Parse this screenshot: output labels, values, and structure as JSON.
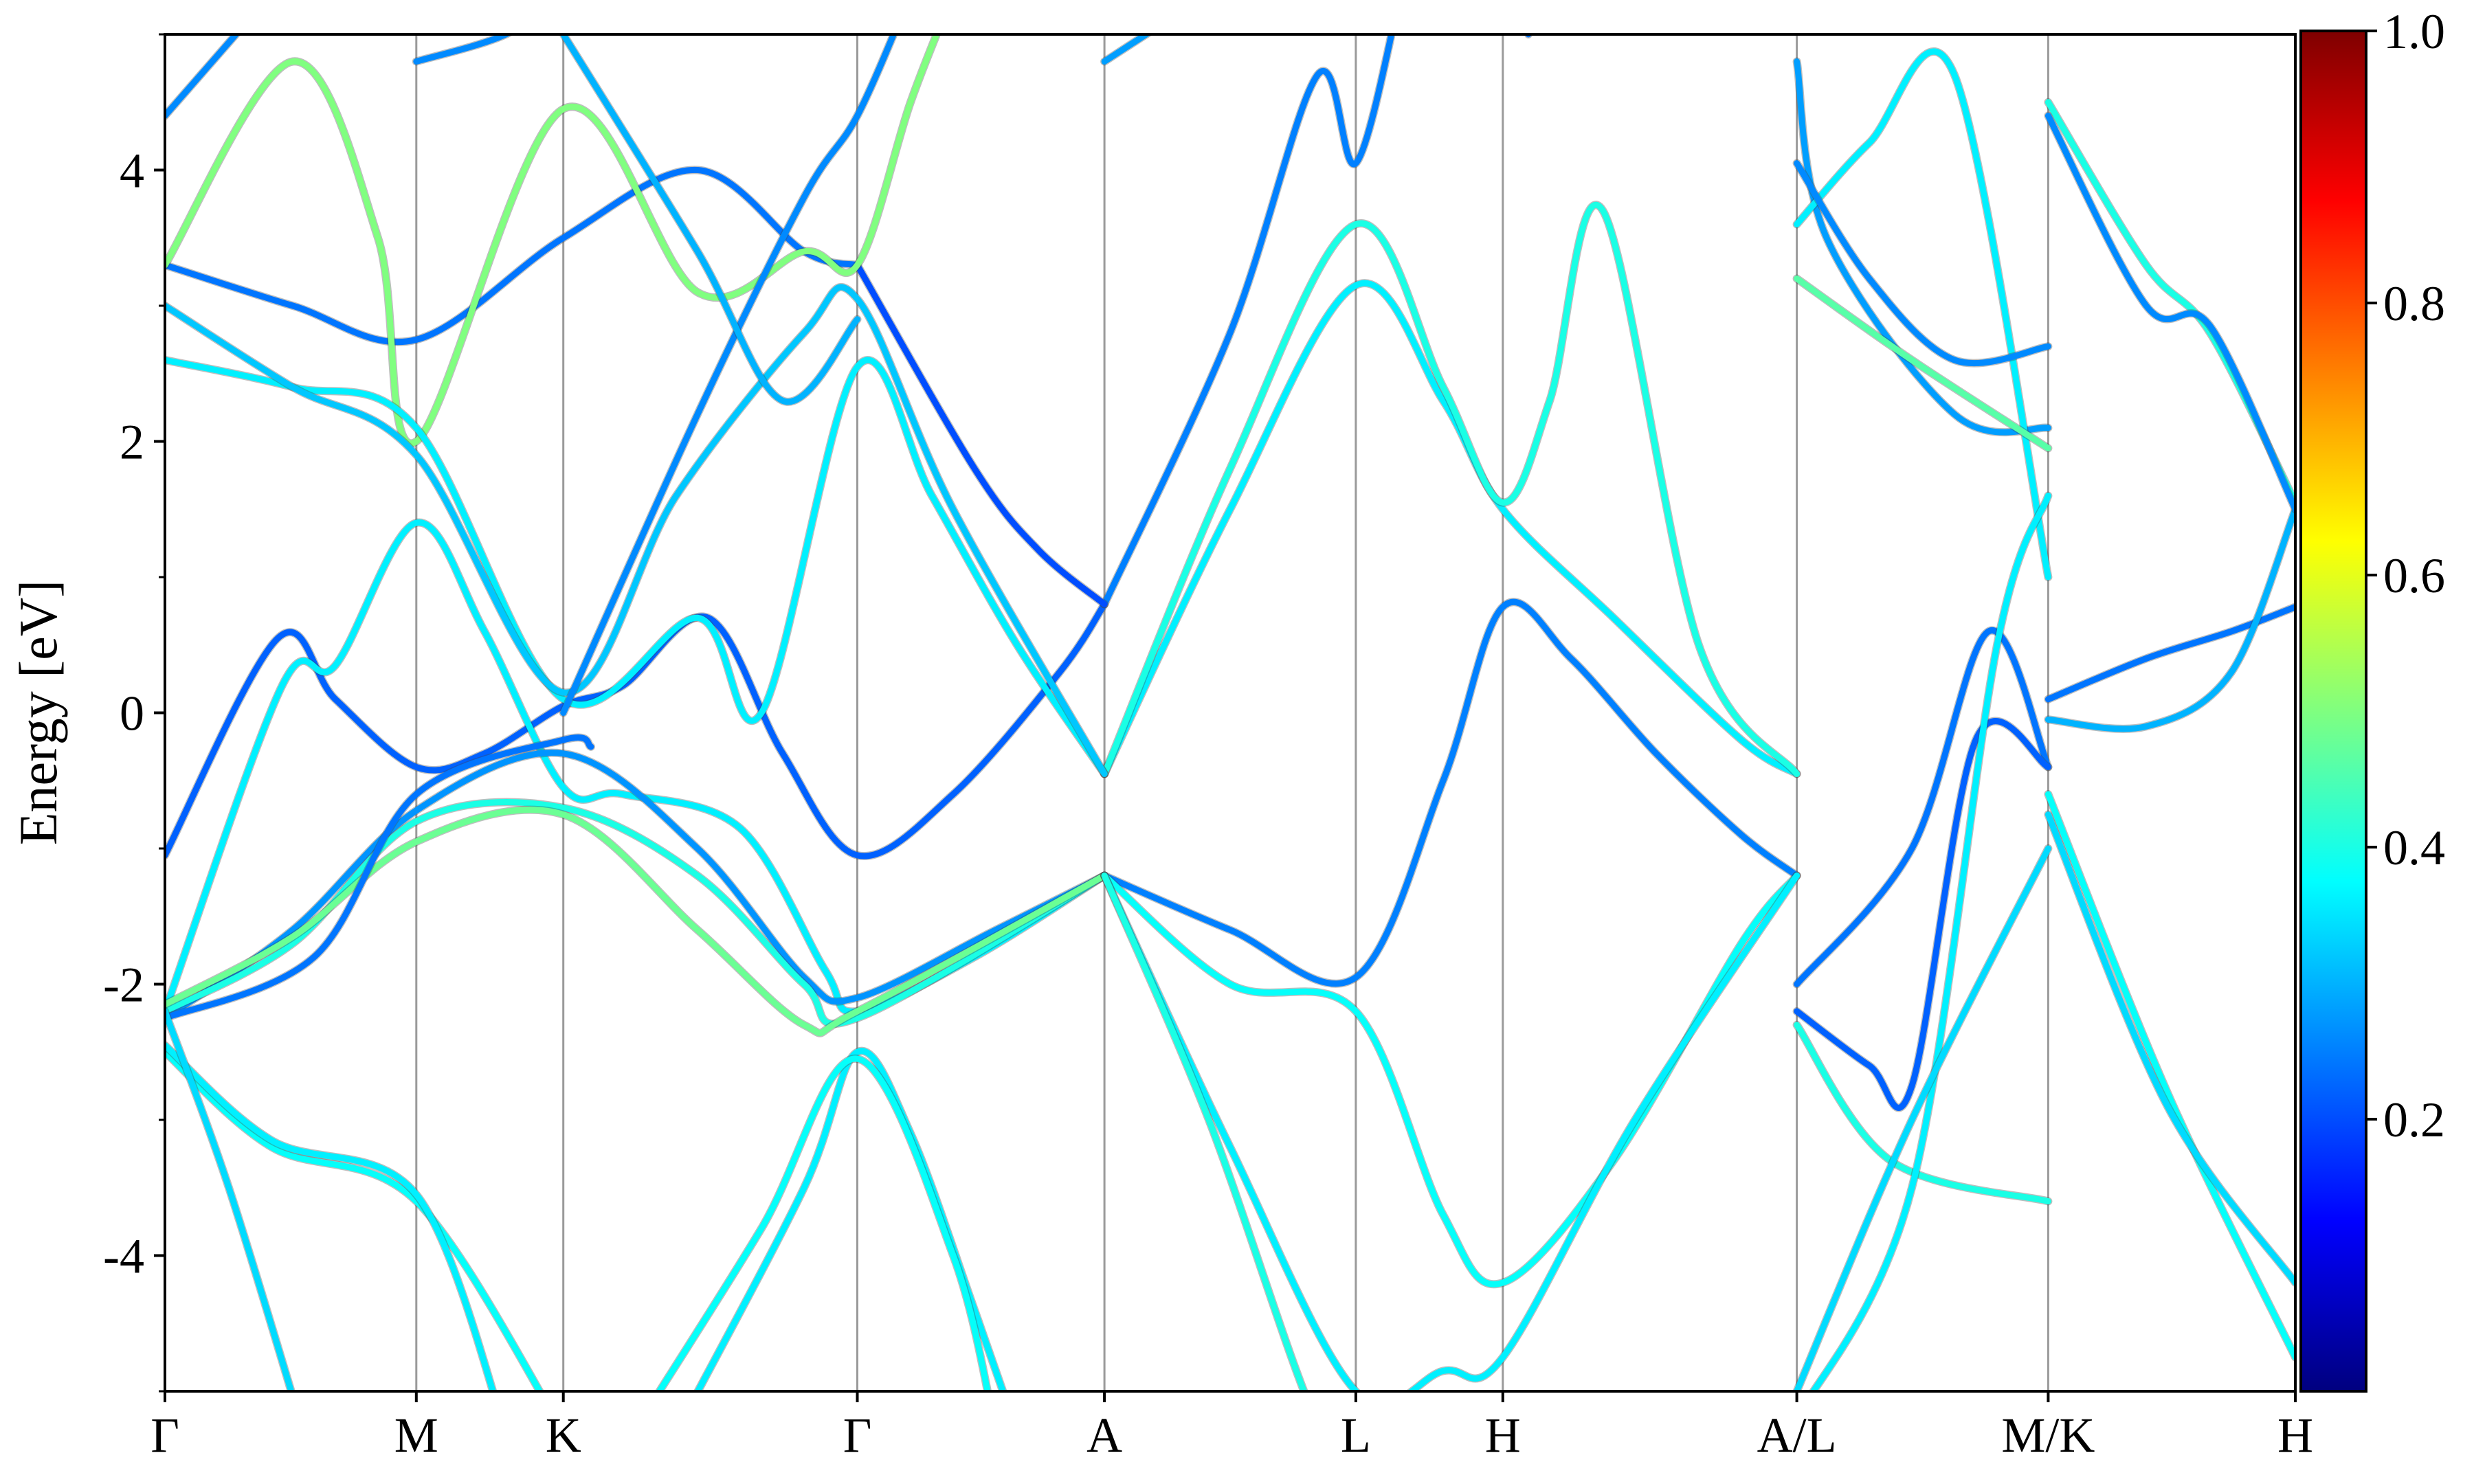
{
  "chart_data": {
    "type": "line",
    "ylabel": "Energy [eV]",
    "ylim": [
      -5,
      5
    ],
    "yticks": [
      {
        "value": 4,
        "label": "4"
      },
      {
        "value": 2,
        "label": "2"
      },
      {
        "value": 0,
        "label": "0"
      },
      {
        "value": -2,
        "label": "-2"
      },
      {
        "value": -4,
        "label": "-4"
      }
    ],
    "xlim": [
      0,
      1
    ],
    "kpoints": [
      {
        "x": 0.0,
        "label": "Γ"
      },
      {
        "x": 0.118,
        "label": "M"
      },
      {
        "x": 0.187,
        "label": "K"
      },
      {
        "x": 0.325,
        "label": "Γ"
      },
      {
        "x": 0.441,
        "label": "A"
      },
      {
        "x": 0.559,
        "label": "L"
      },
      {
        "x": 0.628,
        "label": "H"
      },
      {
        "x": 0.766,
        "label": "A/L"
      },
      {
        "x": 0.884,
        "label": "M/K"
      },
      {
        "x": 1.0,
        "label": "H"
      }
    ],
    "colorbar": {
      "range": [
        0,
        1
      ],
      "colormap": "jet",
      "ticks": [
        {
          "value": 0.2,
          "label": "0.2"
        },
        {
          "value": 0.4,
          "label": "0.4"
        },
        {
          "value": 0.6,
          "label": "0.6"
        },
        {
          "value": 0.8,
          "label": "0.8"
        },
        {
          "value": 1.0,
          "label": "1.0"
        }
      ]
    },
    "bands": [
      {
        "w": 0.22,
        "points": [
          [
            0.0,
            -1.05
          ],
          [
            0.053,
            0.55
          ],
          [
            0.08,
            0.1
          ],
          [
            0.118,
            -0.4
          ],
          [
            0.15,
            -0.3
          ],
          [
            0.187,
            0.05
          ],
          [
            0.215,
            0.2
          ],
          [
            0.255,
            0.7
          ],
          [
            0.29,
            -0.3
          ],
          [
            0.325,
            -1.05
          ],
          [
            0.37,
            -0.6
          ],
          [
            0.42,
            0.3
          ],
          [
            0.441,
            0.8
          ]
        ]
      },
      {
        "w": 0.36,
        "points": [
          [
            0.0,
            -2.2
          ],
          [
            0.055,
            0.2
          ],
          [
            0.08,
            0.35
          ],
          [
            0.118,
            1.4
          ],
          [
            0.15,
            0.6
          ],
          [
            0.187,
            -0.55
          ],
          [
            0.215,
            -0.6
          ],
          [
            0.27,
            -0.85
          ],
          [
            0.31,
            -1.9
          ],
          [
            0.325,
            -2.2
          ],
          [
            0.38,
            -1.8
          ],
          [
            0.441,
            -1.2
          ]
        ]
      },
      {
        "w": 0.27,
        "points": [
          [
            0.0,
            -2.25
          ],
          [
            0.06,
            -1.6
          ],
          [
            0.118,
            -0.72
          ],
          [
            0.187,
            -0.3
          ],
          [
            0.25,
            -1.0
          ],
          [
            0.3,
            -1.95
          ],
          [
            0.325,
            -2.1
          ],
          [
            0.39,
            -1.6
          ],
          [
            0.441,
            -1.2
          ]
        ]
      },
      {
        "w": 0.4,
        "points": [
          [
            0.0,
            -2.2
          ],
          [
            0.06,
            -1.7
          ],
          [
            0.118,
            -0.8
          ],
          [
            0.187,
            -0.7
          ],
          [
            0.25,
            -1.2
          ],
          [
            0.3,
            -2.0
          ],
          [
            0.325,
            -2.25
          ],
          [
            0.441,
            -1.2
          ]
        ]
      },
      {
        "w": 0.48,
        "points": [
          [
            0.0,
            -2.15
          ],
          [
            0.06,
            -1.65
          ],
          [
            0.118,
            -0.95
          ],
          [
            0.187,
            -0.75
          ],
          [
            0.25,
            -1.6
          ],
          [
            0.3,
            -2.3
          ],
          [
            0.325,
            -2.2
          ],
          [
            0.441,
            -1.2
          ]
        ]
      },
      {
        "w": 0.24,
        "points": [
          [
            0.0,
            -2.25
          ],
          [
            0.07,
            -1.8
          ],
          [
            0.118,
            -0.6
          ],
          [
            0.187,
            -0.2
          ],
          [
            0.2,
            -0.25
          ]
        ]
      },
      {
        "w": 0.38,
        "points": [
          [
            0.0,
            -2.5
          ],
          [
            0.05,
            -3.2
          ],
          [
            0.118,
            -3.6
          ],
          [
            0.187,
            -5.3
          ]
        ]
      },
      {
        "w": 0.36,
        "points": [
          [
            0.0,
            -2.45
          ],
          [
            0.05,
            -3.15
          ],
          [
            0.118,
            -3.55
          ],
          [
            0.16,
            -5.3
          ]
        ]
      },
      {
        "w": 0.34,
        "points": [
          [
            0.0,
            -2.2
          ],
          [
            0.03,
            -3.5
          ],
          [
            0.065,
            -5.3
          ]
        ]
      },
      {
        "w": 0.36,
        "points": [
          [
            0.24,
            -5.3
          ],
          [
            0.3,
            -3.5
          ],
          [
            0.325,
            -2.5
          ],
          [
            0.35,
            -3.1
          ],
          [
            0.38,
            -4.4
          ],
          [
            0.4,
            -5.3
          ]
        ]
      },
      {
        "w": 0.38,
        "points": [
          [
            0.22,
            -5.3
          ],
          [
            0.28,
            -3.8
          ],
          [
            0.325,
            -2.55
          ],
          [
            0.37,
            -4.0
          ],
          [
            0.39,
            -5.3
          ]
        ]
      },
      {
        "w": 0.25,
        "points": [
          [
            0.441,
            -1.2
          ],
          [
            0.5,
            -1.6
          ],
          [
            0.559,
            -1.95
          ],
          [
            0.6,
            -0.5
          ],
          [
            0.628,
            0.78
          ],
          [
            0.66,
            0.4
          ],
          [
            0.7,
            -0.3
          ],
          [
            0.74,
            -0.9
          ],
          [
            0.766,
            -1.2
          ]
        ]
      },
      {
        "w": 0.38,
        "points": [
          [
            0.441,
            -1.2
          ],
          [
            0.5,
            -2.0
          ],
          [
            0.559,
            -2.2
          ],
          [
            0.6,
            -3.7
          ],
          [
            0.628,
            -4.2
          ],
          [
            0.68,
            -3.3
          ],
          [
            0.74,
            -1.7
          ],
          [
            0.766,
            -1.2
          ]
        ]
      },
      {
        "w": 0.36,
        "points": [
          [
            0.441,
            -1.2
          ],
          [
            0.5,
            -3.2
          ],
          [
            0.559,
            -5.0
          ],
          [
            0.6,
            -4.85
          ],
          [
            0.628,
            -4.75
          ],
          [
            0.69,
            -3.0
          ],
          [
            0.766,
            -1.2
          ]
        ]
      },
      {
        "w": 0.4,
        "points": [
          [
            0.441,
            -1.2
          ],
          [
            0.49,
            -3.0
          ],
          [
            0.54,
            -5.2
          ],
          [
            0.559,
            -5.3
          ]
        ]
      },
      {
        "w": 0.36,
        "points": [
          [
            0.441,
            -0.45
          ],
          [
            0.5,
            1.5
          ],
          [
            0.559,
            3.15
          ],
          [
            0.6,
            2.3
          ],
          [
            0.628,
            1.5
          ],
          [
            0.68,
            0.7
          ],
          [
            0.74,
            -0.2
          ],
          [
            0.766,
            -0.45
          ]
        ]
      },
      {
        "w": 0.4,
        "points": [
          [
            0.441,
            -0.45
          ],
          [
            0.5,
            1.8
          ],
          [
            0.559,
            3.6
          ],
          [
            0.6,
            2.4
          ],
          [
            0.628,
            1.55
          ],
          [
            0.65,
            2.3
          ],
          [
            0.675,
            3.7
          ],
          [
            0.72,
            0.5
          ],
          [
            0.766,
            -0.45
          ]
        ]
      },
      {
        "w": 0.25,
        "points": [
          [
            0.441,
            0.8
          ],
          [
            0.5,
            2.8
          ],
          [
            0.541,
            4.7
          ],
          [
            0.559,
            4.05
          ],
          [
            0.58,
            5.3
          ]
        ]
      },
      {
        "w": 0.28,
        "points": [
          [
            0.441,
            4.8
          ],
          [
            0.49,
            5.3
          ]
        ]
      },
      {
        "w": 0.2,
        "points": [
          [
            0.325,
            3.3
          ],
          [
            0.38,
            1.8
          ],
          [
            0.41,
            1.2
          ],
          [
            0.441,
            0.8
          ]
        ]
      },
      {
        "w": 0.24,
        "points": [
          [
            0.0,
            3.3
          ],
          [
            0.06,
            3.0
          ],
          [
            0.118,
            2.75
          ],
          [
            0.187,
            3.5
          ],
          [
            0.25,
            4.0
          ],
          [
            0.3,
            3.4
          ],
          [
            0.325,
            3.3
          ]
        ]
      },
      {
        "w": 0.5,
        "points": [
          [
            0.0,
            3.3
          ],
          [
            0.06,
            4.8
          ],
          [
            0.1,
            3.5
          ],
          [
            0.118,
            2.0
          ],
          [
            0.187,
            4.45
          ],
          [
            0.25,
            3.1
          ],
          [
            0.3,
            3.4
          ],
          [
            0.325,
            3.3
          ],
          [
            0.35,
            4.5
          ],
          [
            0.37,
            5.3
          ]
        ]
      },
      {
        "w": 0.36,
        "points": [
          [
            0.0,
            2.6
          ],
          [
            0.06,
            2.4
          ],
          [
            0.118,
            2.1
          ],
          [
            0.187,
            0.1
          ],
          [
            0.25,
            0.7
          ],
          [
            0.28,
            0.0
          ],
          [
            0.325,
            2.55
          ],
          [
            0.36,
            1.6
          ],
          [
            0.4,
            0.5
          ],
          [
            0.441,
            -0.45
          ]
        ]
      },
      {
        "w": 0.32,
        "points": [
          [
            0.0,
            3.0
          ],
          [
            0.06,
            2.4
          ],
          [
            0.118,
            1.9
          ],
          [
            0.187,
            0.15
          ],
          [
            0.24,
            1.6
          ],
          [
            0.3,
            2.8
          ],
          [
            0.325,
            3.05
          ],
          [
            0.37,
            1.5
          ],
          [
            0.441,
            -0.45
          ]
        ]
      },
      {
        "w": 0.26,
        "points": [
          [
            0.0,
            4.4
          ],
          [
            0.05,
            5.3
          ]
        ]
      },
      {
        "w": 0.26,
        "points": [
          [
            0.118,
            4.8
          ],
          [
            0.16,
            5.0
          ],
          [
            0.187,
            5.3
          ]
        ]
      },
      {
        "w": 0.26,
        "points": [
          [
            0.187,
            0.0
          ],
          [
            0.25,
            2.2
          ],
          [
            0.3,
            3.8
          ],
          [
            0.325,
            4.4
          ],
          [
            0.35,
            5.3
          ]
        ]
      },
      {
        "w": 0.3,
        "points": [
          [
            0.187,
            5.0
          ],
          [
            0.25,
            3.4
          ],
          [
            0.29,
            2.3
          ],
          [
            0.325,
            2.9
          ]
        ]
      },
      {
        "w": 0.24,
        "points": [
          [
            0.628,
            5.3
          ],
          [
            0.64,
            5.0
          ]
        ]
      },
      {
        "w": 0.28,
        "points": [
          [
            0.766,
            4.8
          ],
          [
            0.78,
            3.5
          ],
          [
            0.84,
            2.2
          ],
          [
            0.884,
            2.1
          ]
        ]
      },
      {
        "w": 0.36,
        "points": [
          [
            0.766,
            3.6
          ],
          [
            0.8,
            4.2
          ],
          [
            0.84,
            4.7
          ],
          [
            0.884,
            1.0
          ]
        ]
      },
      {
        "w": 0.26,
        "points": [
          [
            0.766,
            4.05
          ],
          [
            0.8,
            3.2
          ],
          [
            0.84,
            2.6
          ],
          [
            0.884,
            2.7
          ]
        ]
      },
      {
        "w": 0.46,
        "points": [
          [
            0.766,
            3.2
          ],
          [
            0.82,
            2.6
          ],
          [
            0.884,
            1.95
          ]
        ]
      },
      {
        "w": 0.24,
        "points": [
          [
            0.766,
            -2.0
          ],
          [
            0.82,
            -1.0
          ],
          [
            0.856,
            0.6
          ],
          [
            0.884,
            -0.4
          ]
        ]
      },
      {
        "w": 0.22,
        "points": [
          [
            0.766,
            -2.2
          ],
          [
            0.8,
            -2.6
          ],
          [
            0.82,
            -2.75
          ],
          [
            0.85,
            -0.2
          ],
          [
            0.884,
            -0.4
          ]
        ]
      },
      {
        "w": 0.4,
        "points": [
          [
            0.766,
            -2.3
          ],
          [
            0.81,
            -3.3
          ],
          [
            0.884,
            -3.6
          ]
        ]
      },
      {
        "w": 0.36,
        "points": [
          [
            0.766,
            -5.2
          ],
          [
            0.82,
            -3.5
          ],
          [
            0.86,
            0.5
          ],
          [
            0.884,
            1.6
          ]
        ]
      },
      {
        "w": 0.34,
        "points": [
          [
            0.766,
            -5.0
          ],
          [
            0.82,
            -3.0
          ],
          [
            0.884,
            -1.0
          ]
        ]
      },
      {
        "w": 0.24,
        "points": [
          [
            0.884,
            0.1
          ],
          [
            0.93,
            0.4
          ],
          [
            0.97,
            0.6
          ],
          [
            1.0,
            0.78
          ]
        ]
      },
      {
        "w": 0.3,
        "points": [
          [
            0.884,
            -0.05
          ],
          [
            0.93,
            -0.1
          ],
          [
            0.97,
            0.3
          ],
          [
            1.0,
            1.5
          ]
        ]
      },
      {
        "w": 0.38,
        "points": [
          [
            0.884,
            -0.6
          ],
          [
            0.94,
            -2.8
          ],
          [
            1.0,
            -4.75
          ]
        ]
      },
      {
        "w": 0.34,
        "points": [
          [
            0.884,
            -0.75
          ],
          [
            0.94,
            -2.9
          ],
          [
            1.0,
            -4.2
          ]
        ]
      },
      {
        "w": 0.4,
        "points": [
          [
            0.884,
            4.5
          ],
          [
            0.93,
            3.3
          ],
          [
            0.96,
            2.8
          ],
          [
            1.0,
            1.55
          ]
        ]
      },
      {
        "w": 0.26,
        "points": [
          [
            0.884,
            4.4
          ],
          [
            0.93,
            3.0
          ],
          [
            0.96,
            2.85
          ],
          [
            1.0,
            1.5
          ]
        ]
      }
    ]
  }
}
